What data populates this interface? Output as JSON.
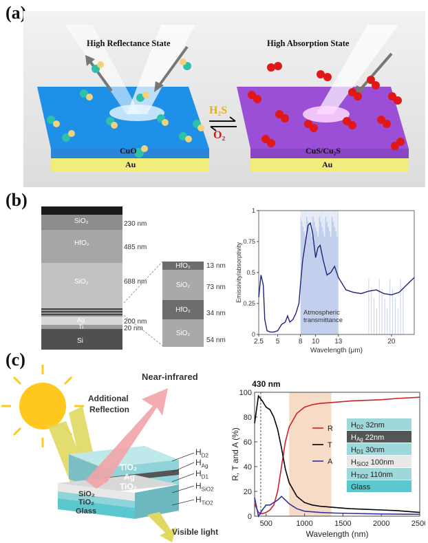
{
  "panel_a": {
    "label": "(a)",
    "left_state": "High Reflectance State",
    "right_state": "High Absorption State",
    "left_layer": "CuO",
    "right_layer": "CuS/Cu₂S",
    "substrate_left": "Au",
    "substrate_right": "Au",
    "gas_top": "H₂S",
    "gas_bottom": "O₂",
    "colors": {
      "cuo": "#1e90e8",
      "cus": "#9b4fd6",
      "au": "#f2ec7a"
    }
  },
  "panel_b": {
    "label": "(b)",
    "sem_layers": [
      {
        "material": "SiO₂",
        "thickness": "230 nm"
      },
      {
        "material": "HfO₂",
        "thickness": "485 nm"
      },
      {
        "material": "SiO₂",
        "thickness": "688 nm"
      },
      {
        "material": "Ag",
        "thickness": "200 nm"
      },
      {
        "material": "Ti",
        "thickness": "20 nm"
      },
      {
        "material": "Si",
        "thickness": ""
      }
    ],
    "zoom_layers": [
      {
        "material": "HfO₂",
        "thickness": "13 nm"
      },
      {
        "material": "SiO₂",
        "thickness": "73 nm"
      },
      {
        "material": "HfO₂",
        "thickness": "34 nm"
      },
      {
        "material": "SiO₂",
        "thickness": "54 nm"
      }
    ]
  },
  "panel_b_chart": {
    "chart_data": {
      "type": "line",
      "xlabel": "Wavelength (μm)",
      "ylabel": "Emissivity/absorptivity",
      "xlim": [
        2.5,
        23
      ],
      "ylim": [
        0,
        1
      ],
      "x_ticks": [
        "2.5",
        "5",
        "8",
        "10",
        "13",
        "20"
      ],
      "x_tick_values": [
        2.5,
        5,
        8,
        10,
        13,
        20
      ],
      "y_ticks": [
        "0",
        "0.25",
        "0.5",
        "0.75",
        "1"
      ],
      "y_tick_values": [
        0,
        0.25,
        0.5,
        0.75,
        1
      ],
      "shaded_region": {
        "label": "Atmospheric transmittance",
        "x": [
          8,
          13
        ]
      },
      "series": [
        {
          "x": [
            2.5,
            2.8,
            3.1,
            3.3,
            3.6,
            4.0,
            4.5,
            5.0,
            5.5,
            6.0,
            6.3,
            6.6,
            7.0,
            7.4,
            7.8,
            8.0,
            8.3,
            8.6,
            9.0,
            9.3,
            9.6,
            10.0,
            10.3,
            10.6,
            11.0,
            11.5,
            12.0,
            12.5,
            13.0,
            14.0,
            15.0,
            16.0,
            17.0,
            18.0,
            19.0,
            20.0,
            21.0,
            22.0,
            23.0
          ],
          "y": [
            0.3,
            0.48,
            0.4,
            0.12,
            0.03,
            0.02,
            0.02,
            0.03,
            0.08,
            0.1,
            0.15,
            0.1,
            0.12,
            0.17,
            0.25,
            0.4,
            0.6,
            0.72,
            0.88,
            0.9,
            0.82,
            0.62,
            0.7,
            0.72,
            0.6,
            0.48,
            0.5,
            0.55,
            0.46,
            0.36,
            0.34,
            0.33,
            0.35,
            0.36,
            0.33,
            0.32,
            0.34,
            0.4,
            0.46
          ]
        }
      ]
    }
  },
  "panel_c": {
    "label": "(c)",
    "near_ir": "Near-infrared",
    "additional": "Additional",
    "reflection": "Reflection",
    "visible": "Visible light",
    "stack_top": [
      "TiO₂",
      "Ag",
      "TiO₂"
    ],
    "stack_bottom": [
      "SiO₂",
      "TiO₂",
      "Glass"
    ],
    "h_labels": [
      "H",
      "H",
      "H",
      "H",
      "H"
    ],
    "h_subs": [
      "D2",
      "Ag",
      "D1",
      "SiO2",
      "TiO2"
    ]
  },
  "panel_c_chart": {
    "chart_data": {
      "type": "line",
      "title": "430 nm",
      "xlabel": "Wavelength (nm)",
      "ylabel": "R, T and A (%)",
      "xlim": [
        350,
        2500
      ],
      "ylim": [
        0,
        100
      ],
      "x_ticks": [
        "500",
        "1000",
        "1500",
        "2000",
        "2500"
      ],
      "x_tick_values": [
        500,
        1000,
        1500,
        2000,
        2500
      ],
      "y_ticks": [
        "0",
        "20",
        "40",
        "60",
        "80",
        "100"
      ],
      "y_tick_values": [
        0,
        20,
        40,
        60,
        80,
        100
      ],
      "shaded_region": {
        "x": [
          800,
          1350
        ]
      },
      "marker_line": 430,
      "legend": [
        "R",
        "T",
        "A"
      ],
      "series": [
        {
          "name": "R",
          "color": "#d02020",
          "x": [
            350,
            400,
            450,
            500,
            550,
            600,
            650,
            700,
            750,
            800,
            900,
            1000,
            1100,
            1200,
            1400,
            1600,
            1800,
            2000,
            2200,
            2500
          ],
          "y": [
            10,
            3,
            2,
            3,
            5,
            9,
            20,
            40,
            60,
            72,
            83,
            88,
            90,
            91,
            92,
            93,
            93.5,
            94,
            95,
            96
          ]
        },
        {
          "name": "T",
          "color": "#000000",
          "x": [
            350,
            400,
            450,
            500,
            550,
            600,
            650,
            700,
            750,
            800,
            900,
            1000,
            1100,
            1200,
            1400,
            1600,
            1800,
            2000,
            2200,
            2500
          ],
          "y": [
            75,
            97,
            93,
            88,
            86,
            80,
            70,
            55,
            38,
            27,
            16,
            11,
            9,
            8,
            7,
            6,
            5.5,
            5,
            4.5,
            3
          ]
        },
        {
          "name": "A",
          "color": "#3030a0",
          "x": [
            350,
            400,
            450,
            500,
            550,
            600,
            650,
            700,
            750,
            800,
            900,
            1000,
            1100,
            1200,
            1400,
            1600,
            1800,
            2000,
            2200,
            2500
          ],
          "y": [
            15,
            0,
            5,
            9,
            9,
            11,
            13,
            16,
            13,
            10,
            6,
            4,
            3.5,
            3,
            2.5,
            2.2,
            2,
            1.8,
            1.6,
            1.5
          ]
        }
      ]
    },
    "legend_stack": [
      {
        "main": "H",
        "sub": "D2",
        "value": " 32nm",
        "color": "#9fd8da"
      },
      {
        "main": "H",
        "sub": "Ag",
        "value": " 22nm",
        "color": "#555555"
      },
      {
        "main": "H",
        "sub": "D1",
        "value": " 30nm",
        "color": "#9fd8da"
      },
      {
        "main": "H",
        "sub": "SiO2",
        "value": " 100nm",
        "color": "#e8e8e8"
      },
      {
        "main": "H",
        "sub": "TiO2",
        "value": " 110nm",
        "color": "#9fd8da"
      },
      {
        "main": "Glass",
        "sub": "",
        "value": "",
        "color": "#5bc8cf"
      }
    ]
  }
}
